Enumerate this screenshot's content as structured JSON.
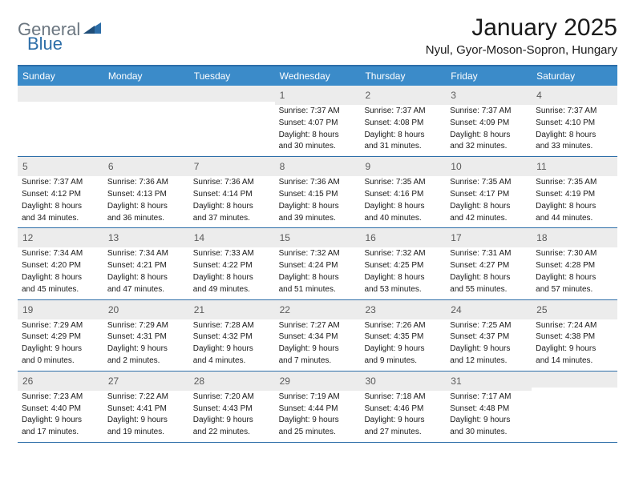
{
  "brand": {
    "part1": "General",
    "part2": "Blue",
    "color_gray": "#6b7680",
    "color_blue": "#2d6ea8"
  },
  "title": "January 2025",
  "location": "Nyul, Gyor-Moson-Sopron, Hungary",
  "colors": {
    "header_bar": "#3b8bc9",
    "header_border": "#2d6ea8",
    "daynum_bg": "#ececec",
    "text": "#1a1a1a",
    "daynum_text": "#5a5a5a",
    "background": "#ffffff"
  },
  "typography": {
    "title_fontsize": 30,
    "location_fontsize": 15,
    "dayheader_fontsize": 12,
    "daynum_fontsize": 12,
    "detail_fontsize": 10
  },
  "day_names": [
    "Sunday",
    "Monday",
    "Tuesday",
    "Wednesday",
    "Thursday",
    "Friday",
    "Saturday"
  ],
  "weeks": [
    [
      {
        "blank": true
      },
      {
        "blank": true
      },
      {
        "blank": true
      },
      {
        "day": "1",
        "sunrise": "Sunrise: 7:37 AM",
        "sunset": "Sunset: 4:07 PM",
        "daylight1": "Daylight: 8 hours",
        "daylight2": "and 30 minutes."
      },
      {
        "day": "2",
        "sunrise": "Sunrise: 7:37 AM",
        "sunset": "Sunset: 4:08 PM",
        "daylight1": "Daylight: 8 hours",
        "daylight2": "and 31 minutes."
      },
      {
        "day": "3",
        "sunrise": "Sunrise: 7:37 AM",
        "sunset": "Sunset: 4:09 PM",
        "daylight1": "Daylight: 8 hours",
        "daylight2": "and 32 minutes."
      },
      {
        "day": "4",
        "sunrise": "Sunrise: 7:37 AM",
        "sunset": "Sunset: 4:10 PM",
        "daylight1": "Daylight: 8 hours",
        "daylight2": "and 33 minutes."
      }
    ],
    [
      {
        "day": "5",
        "sunrise": "Sunrise: 7:37 AM",
        "sunset": "Sunset: 4:12 PM",
        "daylight1": "Daylight: 8 hours",
        "daylight2": "and 34 minutes."
      },
      {
        "day": "6",
        "sunrise": "Sunrise: 7:36 AM",
        "sunset": "Sunset: 4:13 PM",
        "daylight1": "Daylight: 8 hours",
        "daylight2": "and 36 minutes."
      },
      {
        "day": "7",
        "sunrise": "Sunrise: 7:36 AM",
        "sunset": "Sunset: 4:14 PM",
        "daylight1": "Daylight: 8 hours",
        "daylight2": "and 37 minutes."
      },
      {
        "day": "8",
        "sunrise": "Sunrise: 7:36 AM",
        "sunset": "Sunset: 4:15 PM",
        "daylight1": "Daylight: 8 hours",
        "daylight2": "and 39 minutes."
      },
      {
        "day": "9",
        "sunrise": "Sunrise: 7:35 AM",
        "sunset": "Sunset: 4:16 PM",
        "daylight1": "Daylight: 8 hours",
        "daylight2": "and 40 minutes."
      },
      {
        "day": "10",
        "sunrise": "Sunrise: 7:35 AM",
        "sunset": "Sunset: 4:17 PM",
        "daylight1": "Daylight: 8 hours",
        "daylight2": "and 42 minutes."
      },
      {
        "day": "11",
        "sunrise": "Sunrise: 7:35 AM",
        "sunset": "Sunset: 4:19 PM",
        "daylight1": "Daylight: 8 hours",
        "daylight2": "and 44 minutes."
      }
    ],
    [
      {
        "day": "12",
        "sunrise": "Sunrise: 7:34 AM",
        "sunset": "Sunset: 4:20 PM",
        "daylight1": "Daylight: 8 hours",
        "daylight2": "and 45 minutes."
      },
      {
        "day": "13",
        "sunrise": "Sunrise: 7:34 AM",
        "sunset": "Sunset: 4:21 PM",
        "daylight1": "Daylight: 8 hours",
        "daylight2": "and 47 minutes."
      },
      {
        "day": "14",
        "sunrise": "Sunrise: 7:33 AM",
        "sunset": "Sunset: 4:22 PM",
        "daylight1": "Daylight: 8 hours",
        "daylight2": "and 49 minutes."
      },
      {
        "day": "15",
        "sunrise": "Sunrise: 7:32 AM",
        "sunset": "Sunset: 4:24 PM",
        "daylight1": "Daylight: 8 hours",
        "daylight2": "and 51 minutes."
      },
      {
        "day": "16",
        "sunrise": "Sunrise: 7:32 AM",
        "sunset": "Sunset: 4:25 PM",
        "daylight1": "Daylight: 8 hours",
        "daylight2": "and 53 minutes."
      },
      {
        "day": "17",
        "sunrise": "Sunrise: 7:31 AM",
        "sunset": "Sunset: 4:27 PM",
        "daylight1": "Daylight: 8 hours",
        "daylight2": "and 55 minutes."
      },
      {
        "day": "18",
        "sunrise": "Sunrise: 7:30 AM",
        "sunset": "Sunset: 4:28 PM",
        "daylight1": "Daylight: 8 hours",
        "daylight2": "and 57 minutes."
      }
    ],
    [
      {
        "day": "19",
        "sunrise": "Sunrise: 7:29 AM",
        "sunset": "Sunset: 4:29 PM",
        "daylight1": "Daylight: 9 hours",
        "daylight2": "and 0 minutes."
      },
      {
        "day": "20",
        "sunrise": "Sunrise: 7:29 AM",
        "sunset": "Sunset: 4:31 PM",
        "daylight1": "Daylight: 9 hours",
        "daylight2": "and 2 minutes."
      },
      {
        "day": "21",
        "sunrise": "Sunrise: 7:28 AM",
        "sunset": "Sunset: 4:32 PM",
        "daylight1": "Daylight: 9 hours",
        "daylight2": "and 4 minutes."
      },
      {
        "day": "22",
        "sunrise": "Sunrise: 7:27 AM",
        "sunset": "Sunset: 4:34 PM",
        "daylight1": "Daylight: 9 hours",
        "daylight2": "and 7 minutes."
      },
      {
        "day": "23",
        "sunrise": "Sunrise: 7:26 AM",
        "sunset": "Sunset: 4:35 PM",
        "daylight1": "Daylight: 9 hours",
        "daylight2": "and 9 minutes."
      },
      {
        "day": "24",
        "sunrise": "Sunrise: 7:25 AM",
        "sunset": "Sunset: 4:37 PM",
        "daylight1": "Daylight: 9 hours",
        "daylight2": "and 12 minutes."
      },
      {
        "day": "25",
        "sunrise": "Sunrise: 7:24 AM",
        "sunset": "Sunset: 4:38 PM",
        "daylight1": "Daylight: 9 hours",
        "daylight2": "and 14 minutes."
      }
    ],
    [
      {
        "day": "26",
        "sunrise": "Sunrise: 7:23 AM",
        "sunset": "Sunset: 4:40 PM",
        "daylight1": "Daylight: 9 hours",
        "daylight2": "and 17 minutes."
      },
      {
        "day": "27",
        "sunrise": "Sunrise: 7:22 AM",
        "sunset": "Sunset: 4:41 PM",
        "daylight1": "Daylight: 9 hours",
        "daylight2": "and 19 minutes."
      },
      {
        "day": "28",
        "sunrise": "Sunrise: 7:20 AM",
        "sunset": "Sunset: 4:43 PM",
        "daylight1": "Daylight: 9 hours",
        "daylight2": "and 22 minutes."
      },
      {
        "day": "29",
        "sunrise": "Sunrise: 7:19 AM",
        "sunset": "Sunset: 4:44 PM",
        "daylight1": "Daylight: 9 hours",
        "daylight2": "and 25 minutes."
      },
      {
        "day": "30",
        "sunrise": "Sunrise: 7:18 AM",
        "sunset": "Sunset: 4:46 PM",
        "daylight1": "Daylight: 9 hours",
        "daylight2": "and 27 minutes."
      },
      {
        "day": "31",
        "sunrise": "Sunrise: 7:17 AM",
        "sunset": "Sunset: 4:48 PM",
        "daylight1": "Daylight: 9 hours",
        "daylight2": "and 30 minutes."
      },
      {
        "blank": true
      }
    ]
  ]
}
